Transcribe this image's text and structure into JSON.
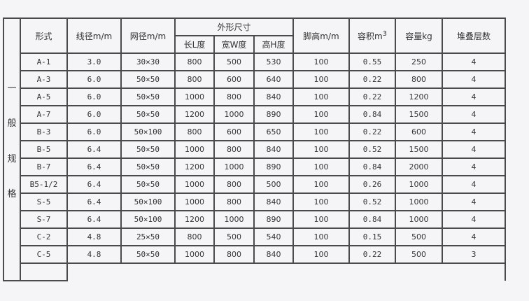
{
  "side_label": [
    "一",
    "般",
    "规",
    "格"
  ],
  "headers": {
    "form": "形式",
    "wire": "线径m/m",
    "mesh": "网径m/m",
    "outer": "外形尺寸",
    "length": "长L度",
    "width": "宽W度",
    "height": "高H度",
    "foot": "脚高m/m",
    "volume": "容积m",
    "volume_sup": "3",
    "capacity": "容量kg",
    "stack": "堆叠层数"
  },
  "rows": [
    [
      "A-1",
      "3.0",
      "30×30",
      "800",
      "500",
      "530",
      "100",
      "0.55",
      "250",
      "4"
    ],
    [
      "A-3",
      "6.0",
      "50×50",
      "800",
      "600",
      "640",
      "100",
      "0.22",
      "800",
      "4"
    ],
    [
      "A-5",
      "6.0",
      "50×50",
      "1000",
      "800",
      "840",
      "100",
      "0.22",
      "1200",
      "4"
    ],
    [
      "A-7",
      "6.0",
      "50×50",
      "1200",
      "1000",
      "890",
      "100",
      "0.84",
      "1500",
      "4"
    ],
    [
      "B-3",
      "6.0",
      "50×100",
      "800",
      "600",
      "650",
      "100",
      "0.22",
      "600",
      "4"
    ],
    [
      "B-5",
      "6.4",
      "50×50",
      "1000",
      "800",
      "840",
      "100",
      "0.52",
      "1500",
      "4"
    ],
    [
      "B-7",
      "6.4",
      "50×50",
      "1200",
      "1000",
      "890",
      "100",
      "0.84",
      "2000",
      "4"
    ],
    [
      "B5-1/2",
      "6.4",
      "50×50",
      "1000",
      "800",
      "500",
      "100",
      "0.26",
      "1000",
      "4"
    ],
    [
      "S-5",
      "6.4",
      "50×100",
      "1000",
      "800",
      "840",
      "100",
      "0.52",
      "1000",
      "4"
    ],
    [
      "S-7",
      "6.4",
      "50×100",
      "1200",
      "1000",
      "890",
      "100",
      "0.84",
      "1000",
      "4"
    ],
    [
      "C-2",
      "4.8",
      "25×50",
      "800",
      "500",
      "540",
      "100",
      "0.15",
      "500",
      "4"
    ],
    [
      "C-5",
      "4.8",
      "50×50",
      "1000",
      "800",
      "840",
      "100",
      "0.22",
      "500",
      "3"
    ]
  ]
}
